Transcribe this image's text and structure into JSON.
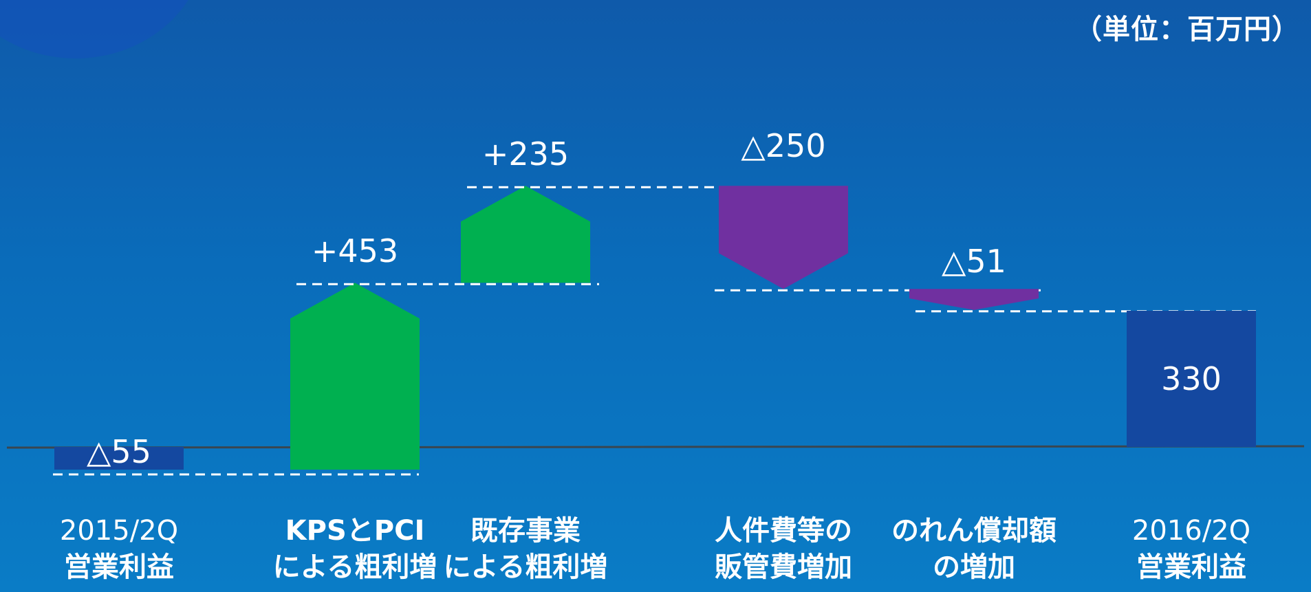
{
  "unit_label": "（単位：百万円）",
  "colors": {
    "increase": "#00b050",
    "decrease": "#7030a0",
    "total": "#1448a0",
    "axis": "#3a4650",
    "text": "#ffffff"
  },
  "chart_data": {
    "type": "bar",
    "subtype": "waterfall",
    "categories": [
      [
        "2015/2Q",
        "営業利益"
      ],
      [
        "KPSとPCI",
        "による粗利増"
      ],
      [
        "既存事業",
        "による粗利増"
      ],
      [
        "人件費等の",
        "販管費増加"
      ],
      [
        "のれん償却額",
        "の増加"
      ],
      [
        "2016/2Q",
        "営業利益"
      ]
    ],
    "steps": [
      {
        "kind": "total",
        "value": -55,
        "label": "△55"
      },
      {
        "kind": "increase",
        "value": 453,
        "label": "+453"
      },
      {
        "kind": "increase",
        "value": 235,
        "label": "+235"
      },
      {
        "kind": "decrease",
        "value": -250,
        "label": "△250"
      },
      {
        "kind": "decrease",
        "value": -51,
        "label": "△51"
      },
      {
        "kind": "total",
        "value": 330,
        "label": "330"
      }
    ]
  }
}
